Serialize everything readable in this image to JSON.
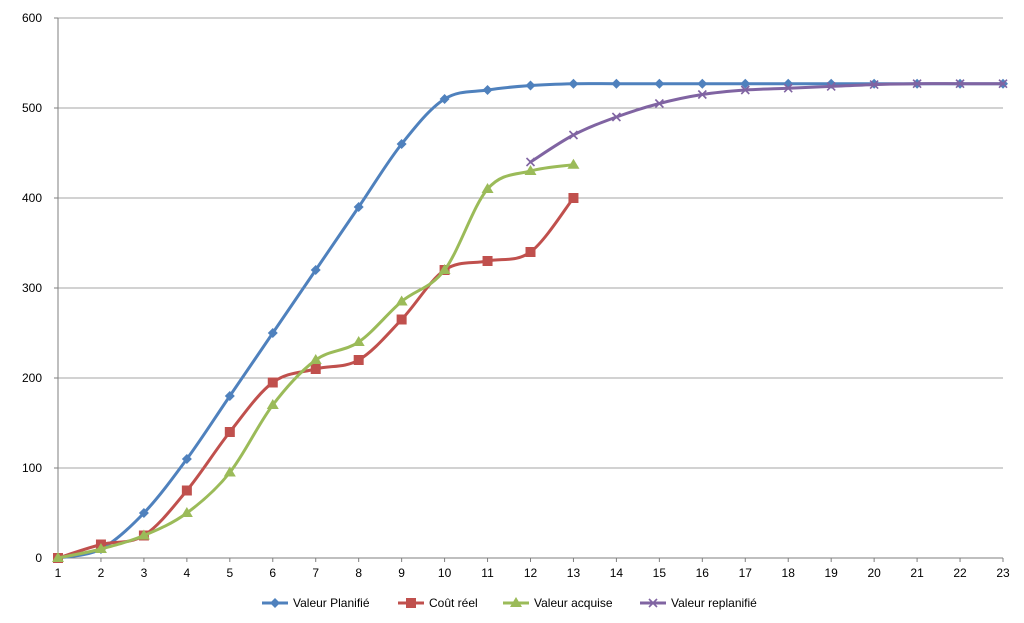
{
  "chart_data": {
    "type": "line",
    "title": "",
    "xlabel": "",
    "ylabel": "",
    "x": [
      1,
      2,
      3,
      4,
      5,
      6,
      7,
      8,
      9,
      10,
      11,
      12,
      13,
      14,
      15,
      16,
      17,
      18,
      19,
      20,
      21,
      22,
      23
    ],
    "xlim": [
      1,
      23
    ],
    "ylim": [
      0,
      600
    ],
    "yticks": [
      0,
      100,
      200,
      300,
      400,
      500,
      600
    ],
    "grid": "horizontal",
    "legend_position": "bottom",
    "series": [
      {
        "name": "Valeur Planifié",
        "color": "#4F81BD",
        "marker": "diamond",
        "points": [
          [
            1,
            0
          ],
          [
            2,
            10
          ],
          [
            3,
            50
          ],
          [
            4,
            110
          ],
          [
            5,
            180
          ],
          [
            6,
            250
          ],
          [
            7,
            320
          ],
          [
            8,
            390
          ],
          [
            9,
            460
          ],
          [
            10,
            510
          ],
          [
            11,
            520
          ],
          [
            12,
            525
          ],
          [
            13,
            527
          ],
          [
            14,
            527
          ],
          [
            15,
            527
          ],
          [
            16,
            527
          ],
          [
            17,
            527
          ],
          [
            18,
            527
          ],
          [
            19,
            527
          ],
          [
            20,
            527
          ],
          [
            21,
            527
          ],
          [
            22,
            527
          ],
          [
            23,
            527
          ]
        ]
      },
      {
        "name": "Coût réel",
        "color": "#C0504D",
        "marker": "square",
        "points": [
          [
            1,
            0
          ],
          [
            2,
            15
          ],
          [
            3,
            25
          ],
          [
            4,
            75
          ],
          [
            5,
            140
          ],
          [
            6,
            195
          ],
          [
            7,
            210
          ],
          [
            8,
            220
          ],
          [
            9,
            265
          ],
          [
            10,
            320
          ],
          [
            11,
            330
          ],
          [
            12,
            340
          ],
          [
            13,
            400
          ]
        ]
      },
      {
        "name": "Valeur acquise",
        "color": "#9BBB59",
        "marker": "triangle",
        "points": [
          [
            1,
            0
          ],
          [
            2,
            10
          ],
          [
            3,
            25
          ],
          [
            4,
            50
          ],
          [
            5,
            95
          ],
          [
            6,
            170
          ],
          [
            7,
            220
          ],
          [
            8,
            240
          ],
          [
            9,
            285
          ],
          [
            10,
            320
          ],
          [
            11,
            410
          ],
          [
            12,
            430
          ],
          [
            13,
            437
          ]
        ]
      },
      {
        "name": "Valeur replanifié",
        "color": "#8064A2",
        "marker": "x",
        "points": [
          [
            12,
            440
          ],
          [
            13,
            470
          ],
          [
            14,
            490
          ],
          [
            15,
            505
          ],
          [
            16,
            515
          ],
          [
            17,
            520
          ],
          [
            18,
            522
          ],
          [
            19,
            524
          ],
          [
            20,
            526
          ],
          [
            21,
            527
          ],
          [
            22,
            527
          ],
          [
            23,
            527
          ]
        ]
      }
    ]
  }
}
